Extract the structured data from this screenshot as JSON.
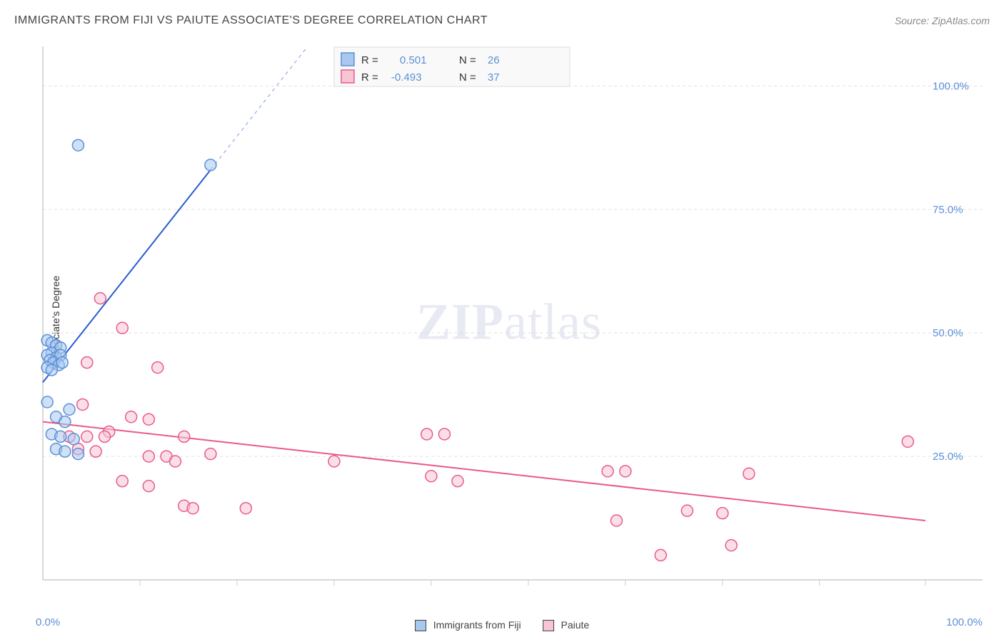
{
  "header": {
    "title": "IMMIGRANTS FROM FIJI VS PAIUTE ASSOCIATE'S DEGREE CORRELATION CHART",
    "source": "Source: ZipAtlas.com"
  },
  "y_axis_label": "Associate's Degree",
  "watermark": {
    "bold": "ZIP",
    "light": "atlas"
  },
  "chart": {
    "type": "scatter",
    "xlim": [
      0,
      100
    ],
    "ylim": [
      0,
      108
    ],
    "y_ticks": [
      25.0,
      50.0,
      75.0,
      100.0
    ],
    "y_tick_labels": [
      "25.0%",
      "50.0%",
      "75.0%",
      "100.0%"
    ],
    "x_tick_positions": [
      11,
      22,
      33,
      44,
      55,
      66,
      77,
      88,
      100
    ],
    "x_min_label": "0.0%",
    "x_max_label": "100.0%",
    "background_color": "#ffffff",
    "grid_color": "#e0e0e0",
    "axis_color": "#cccccc",
    "marker_radius": 8,
    "series": {
      "fiji": {
        "label": "Immigrants from Fiji",
        "color_fill": "#a8c8f0",
        "color_stroke": "#5b8fd6",
        "R": "0.501",
        "N": "26",
        "trend_line": {
          "x1": 0,
          "y1": 40,
          "x2": 19,
          "y2": 83,
          "color": "#2a5bd0"
        },
        "trend_dash": {
          "x1": 19,
          "y1": 83,
          "x2": 30,
          "y2": 108
        },
        "points": [
          [
            4,
            88
          ],
          [
            19,
            84
          ],
          [
            0.5,
            48.5
          ],
          [
            1,
            48
          ],
          [
            1.5,
            47.5
          ],
          [
            2,
            47
          ],
          [
            1,
            46
          ],
          [
            0.5,
            45.5
          ],
          [
            1.5,
            45
          ],
          [
            2,
            45.5
          ],
          [
            0.8,
            44.5
          ],
          [
            1.2,
            44
          ],
          [
            0.5,
            43
          ],
          [
            1.8,
            43.5
          ],
          [
            2.2,
            44
          ],
          [
            1,
            42.5
          ],
          [
            0.5,
            36
          ],
          [
            3,
            34.5
          ],
          [
            1.5,
            33
          ],
          [
            2.5,
            32
          ],
          [
            1,
            29.5
          ],
          [
            2,
            29
          ],
          [
            3.5,
            28.5
          ],
          [
            1.5,
            26.5
          ],
          [
            2.5,
            26
          ],
          [
            4,
            25.5
          ]
        ]
      },
      "paiute": {
        "label": "Paiute",
        "color_fill": "#f8c5d5",
        "color_stroke": "#e85a8a",
        "R": "-0.493",
        "N": "37",
        "trend_line": {
          "x1": 0,
          "y1": 32,
          "x2": 100,
          "y2": 12,
          "color": "#e85a8a"
        },
        "points": [
          [
            6.5,
            57
          ],
          [
            9,
            51
          ],
          [
            5,
            44
          ],
          [
            13,
            43
          ],
          [
            4.5,
            35.5
          ],
          [
            10,
            33
          ],
          [
            12,
            32.5
          ],
          [
            7.5,
            30
          ],
          [
            3,
            29
          ],
          [
            5,
            29
          ],
          [
            7,
            29
          ],
          [
            16,
            29
          ],
          [
            43.5,
            29.5
          ],
          [
            45.5,
            29.5
          ],
          [
            98,
            28
          ],
          [
            4,
            26.5
          ],
          [
            6,
            26
          ],
          [
            12,
            25
          ],
          [
            14,
            25
          ],
          [
            19,
            25.5
          ],
          [
            15,
            24
          ],
          [
            33,
            24
          ],
          [
            44,
            21
          ],
          [
            47,
            20
          ],
          [
            9,
            20
          ],
          [
            12,
            19
          ],
          [
            64,
            22
          ],
          [
            66,
            22
          ],
          [
            80,
            21.5
          ],
          [
            16,
            15
          ],
          [
            17,
            14.5
          ],
          [
            23,
            14.5
          ],
          [
            73,
            14
          ],
          [
            77,
            13.5
          ],
          [
            65,
            12
          ],
          [
            78,
            7
          ],
          [
            70,
            5
          ]
        ]
      }
    },
    "legend_box": {
      "r_label": "R =",
      "n_label": "N ="
    }
  },
  "bottom_legend": {
    "item1": "Immigrants from Fiji",
    "item2": "Paiute"
  }
}
